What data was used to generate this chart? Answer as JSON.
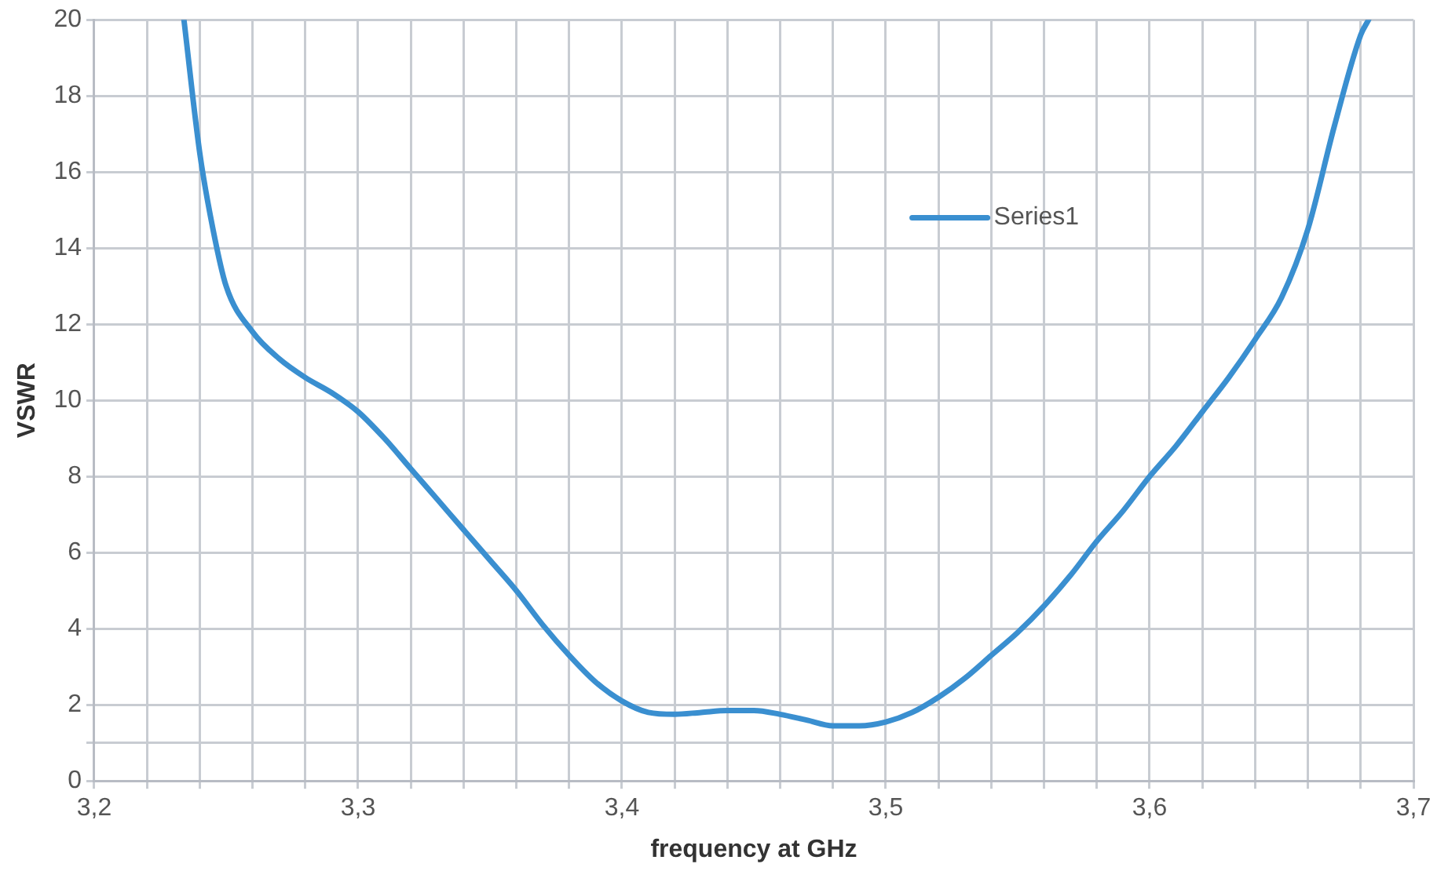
{
  "chart_data": {
    "type": "line",
    "xlabel": "frequency at GHz",
    "ylabel": "VSWR",
    "xlim": [
      3.2,
      3.7
    ],
    "xticks": [
      {
        "value": 3.2,
        "label": "3,2"
      },
      {
        "value": 3.22,
        "label": null
      },
      {
        "value": 3.24,
        "label": null
      },
      {
        "value": 3.26,
        "label": null
      },
      {
        "value": 3.28,
        "label": null
      },
      {
        "value": 3.3,
        "label": "3,3"
      },
      {
        "value": 3.32,
        "label": null
      },
      {
        "value": 3.34,
        "label": null
      },
      {
        "value": 3.36,
        "label": null
      },
      {
        "value": 3.38,
        "label": null
      },
      {
        "value": 3.4,
        "label": "3,4"
      },
      {
        "value": 3.42,
        "label": null
      },
      {
        "value": 3.44,
        "label": null
      },
      {
        "value": 3.46,
        "label": null
      },
      {
        "value": 3.48,
        "label": null
      },
      {
        "value": 3.5,
        "label": "3,5"
      },
      {
        "value": 3.52,
        "label": null
      },
      {
        "value": 3.54,
        "label": null
      },
      {
        "value": 3.56,
        "label": null
      },
      {
        "value": 3.58,
        "label": null
      },
      {
        "value": 3.6,
        "label": "3,6"
      },
      {
        "value": 3.62,
        "label": null
      },
      {
        "value": 3.64,
        "label": null
      },
      {
        "value": 3.66,
        "label": null
      },
      {
        "value": 3.68,
        "label": null
      },
      {
        "value": 3.7,
        "label": "3,7"
      }
    ],
    "ylim": [
      0,
      20
    ],
    "yticks": [
      0,
      {
        "value": 1,
        "label": null
      },
      2,
      4,
      6,
      8,
      10,
      12,
      14,
      16,
      18,
      20
    ],
    "grid": true,
    "legend": "top right",
    "marker": "none",
    "line_style": "solid",
    "series": [
      {
        "name": "Series1",
        "color": "#3a8fd0",
        "x": [
          3.234,
          3.24,
          3.245,
          3.25,
          3.26,
          3.27,
          3.28,
          3.29,
          3.3,
          3.31,
          3.32,
          3.33,
          3.34,
          3.35,
          3.36,
          3.37,
          3.38,
          3.39,
          3.4,
          3.41,
          3.42,
          3.43,
          3.44,
          3.45,
          3.46,
          3.47,
          3.48,
          3.49,
          3.5,
          3.51,
          3.52,
          3.53,
          3.54,
          3.55,
          3.56,
          3.57,
          3.58,
          3.59,
          3.6,
          3.61,
          3.62,
          3.63,
          3.64,
          3.65,
          3.66,
          3.67,
          3.68,
          3.683
        ],
        "values": [
          20,
          16.5,
          14.5,
          13,
          11.8,
          11.1,
          10.6,
          10.2,
          9.7,
          9,
          8.2,
          7.4,
          6.6,
          5.8,
          5,
          4.1,
          3.3,
          2.6,
          2.1,
          1.8,
          1.75,
          1.8,
          1.85,
          1.85,
          1.75,
          1.6,
          1.45,
          1.45,
          1.55,
          1.8,
          2.2,
          2.7,
          3.3,
          3.9,
          4.6,
          5.4,
          6.3,
          7.1,
          8,
          8.8,
          9.7,
          10.6,
          11.6,
          12.7,
          14.5,
          17.2,
          19.6,
          20
        ]
      }
    ]
  }
}
